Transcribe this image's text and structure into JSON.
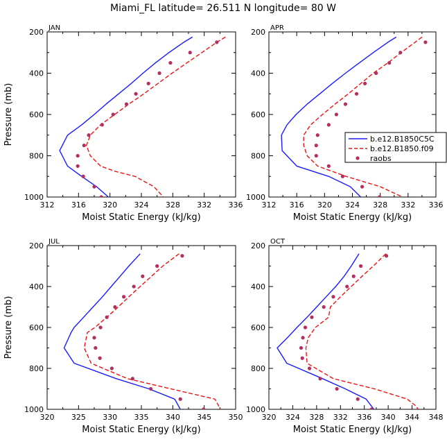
{
  "title": "Miami_FL  latitude= 26.511 N longitude= 80 W",
  "colors": {
    "model1": "#1a1aff",
    "model2": "#ee1111",
    "obs": "#b03060",
    "axis": "#000000"
  },
  "legend": {
    "entries": [
      {
        "label": "b.e12.B1850C5C",
        "style": "solid-blue"
      },
      {
        "label": "b.e12.B1850.f09",
        "style": "dashed-red"
      },
      {
        "label": "raobs",
        "style": "dot"
      }
    ]
  },
  "chart_data": [
    {
      "type": "line",
      "label": "JAN",
      "xlabel": "Moist Static Energy (kJ/kg)",
      "ylabel": "Pressure (mb)",
      "xlim": [
        312,
        336
      ],
      "xticks": [
        312,
        316,
        320,
        324,
        328,
        332,
        336
      ],
      "ylim": [
        200,
        1000
      ],
      "yticks": [
        200,
        400,
        600,
        800,
        1000
      ],
      "y_inverted": true,
      "series": [
        {
          "name": "b.e12.B1850C5C",
          "style": "solid",
          "p": [
            225,
            250,
            300,
            350,
            400,
            450,
            500,
            550,
            600,
            650,
            700,
            775,
            850,
            900,
            950,
            1000,
            1015
          ],
          "mse": [
            330.5,
            329.4,
            327.5,
            325.8,
            324.2,
            322.7,
            321.1,
            319.5,
            318.0,
            316.4,
            314.6,
            313.6,
            314.6,
            316.4,
            318.3,
            319.8,
            320.3
          ]
        },
        {
          "name": "b.e12.B1850.f09",
          "style": "dashed",
          "p": [
            225,
            250,
            300,
            350,
            400,
            450,
            500,
            550,
            600,
            650,
            700,
            750,
            800,
            850,
            875,
            900,
            950,
            1000
          ],
          "mse": [
            334.7,
            333.6,
            331.7,
            329.8,
            327.9,
            326.1,
            324.3,
            322.4,
            320.6,
            318.8,
            317.5,
            317.0,
            317.5,
            318.8,
            320.6,
            323.2,
            325.6,
            326.8
          ]
        },
        {
          "name": "raobs",
          "style": "dot",
          "p": [
            250,
            300,
            350,
            400,
            450,
            500,
            550,
            600,
            650,
            700,
            750,
            800,
            850,
            900,
            950,
            1000
          ],
          "mse": [
            333.6,
            330.2,
            327.7,
            326.3,
            324.9,
            323.3,
            322.1,
            320.4,
            319.0,
            317.3,
            316.7,
            315.9,
            315.9,
            316.6,
            318.0,
            318.9
          ]
        }
      ]
    },
    {
      "type": "line",
      "label": "APR",
      "xlabel": "Moist Static Energy (kJ/kg)",
      "ylabel": "",
      "xlim": [
        312,
        336
      ],
      "xticks": [
        312,
        316,
        320,
        324,
        328,
        332,
        336
      ],
      "ylim": [
        200,
        1000
      ],
      "yticks": [
        200,
        400,
        600,
        800,
        1000
      ],
      "y_inverted": true,
      "series": [
        {
          "name": "b.e12.B1850C5C",
          "style": "solid",
          "p": [
            225,
            250,
            300,
            350,
            400,
            450,
            500,
            550,
            600,
            650,
            700,
            775,
            850,
            900,
            950,
            1000,
            1015
          ],
          "mse": [
            330.3,
            329.1,
            327.0,
            325.0,
            323.0,
            321.1,
            319.3,
            317.5,
            315.9,
            314.6,
            313.8,
            313.9,
            316.0,
            320.6,
            323.7,
            325.2,
            325.7
          ]
        },
        {
          "name": "b.e12.B1850.f09",
          "style": "dashed",
          "p": [
            225,
            250,
            300,
            350,
            400,
            450,
            500,
            550,
            600,
            650,
            700,
            750,
            800,
            850,
            900,
            950,
            1000,
            1015
          ],
          "mse": [
            334.0,
            333.0,
            331.0,
            329.1,
            327.0,
            325.2,
            323.4,
            321.5,
            319.7,
            318.0,
            317.0,
            317.0,
            317.5,
            319.0,
            323.1,
            328.0,
            331.2,
            331.5
          ]
        },
        {
          "name": "raobs",
          "style": "dot",
          "p": [
            250,
            300,
            350,
            400,
            450,
            500,
            550,
            600,
            650,
            700,
            750,
            800,
            850,
            900,
            950,
            1000
          ],
          "mse": [
            334.5,
            330.9,
            329.3,
            327.4,
            325.8,
            324.6,
            323.0,
            321.7,
            320.6,
            319.0,
            318.8,
            318.8,
            320.6,
            322.6,
            325.4,
            327.9
          ]
        }
      ]
    },
    {
      "type": "line",
      "label": "JUL",
      "xlabel": "Moist Static Energy (kJ/kg)",
      "ylabel": "Pressure (mb)",
      "xlim": [
        320,
        350
      ],
      "xticks": [
        320,
        325,
        330,
        335,
        340,
        345,
        350
      ],
      "ylim": [
        200,
        1000
      ],
      "yticks": [
        200,
        400,
        600,
        800,
        1000
      ],
      "y_inverted": true,
      "series": [
        {
          "name": "b.e12.B1850C5C",
          "style": "solid",
          "p": [
            240,
            300,
            350,
            400,
            450,
            500,
            550,
            600,
            625,
            700,
            775,
            850,
            900,
            950,
            1000,
            1020
          ],
          "mse": [
            334.8,
            333.0,
            331.6,
            330.2,
            328.8,
            327.3,
            325.8,
            324.3,
            323.8,
            322.7,
            324.3,
            331.0,
            336.2,
            340.3,
            341.2,
            341.5
          ]
        },
        {
          "name": "b.e12.B1850.f09",
          "style": "dashed",
          "p": [
            240,
            300,
            350,
            400,
            450,
            500,
            550,
            600,
            625,
            700,
            775,
            850,
            900,
            950,
            1000,
            1020
          ],
          "mse": [
            341.0,
            338.4,
            336.6,
            334.8,
            333.0,
            331.3,
            329.5,
            327.6,
            326.4,
            325.9,
            327.0,
            332.8,
            339.7,
            346.7,
            347.6,
            348.0
          ]
        },
        {
          "name": "raobs",
          "style": "dot",
          "p": [
            250,
            300,
            350,
            400,
            450,
            500,
            550,
            600,
            650,
            700,
            750,
            800,
            850,
            900,
            950,
            1000
          ],
          "mse": [
            341.5,
            337.5,
            335.2,
            333.8,
            332.2,
            330.8,
            329.5,
            328.5,
            327.5,
            327.7,
            328.4,
            330.3,
            333.6,
            336.5,
            341.2,
            344.9
          ]
        }
      ]
    },
    {
      "type": "line",
      "label": "OCT",
      "xlabel": "Moist Static Energy (kJ/kg)",
      "ylabel": "",
      "xlim": [
        320,
        348
      ],
      "xticks": [
        320,
        324,
        328,
        332,
        336,
        340,
        344,
        348
      ],
      "ylim": [
        200,
        1000
      ],
      "yticks": [
        200,
        400,
        600,
        800,
        1000
      ],
      "y_inverted": true,
      "series": [
        {
          "name": "b.e12.B1850C5C",
          "style": "solid",
          "p": [
            240,
            300,
            350,
            400,
            450,
            500,
            550,
            600,
            650,
            700,
            775,
            850,
            900,
            950,
            1000,
            1015
          ],
          "mse": [
            335.1,
            333.8,
            332.6,
            331.2,
            329.6,
            328.0,
            326.4,
            324.7,
            323.1,
            321.4,
            323.0,
            329.0,
            332.8,
            336.3,
            337.6,
            337.8
          ]
        },
        {
          "name": "b.e12.B1850.f09",
          "style": "dashed",
          "p": [
            240,
            300,
            350,
            400,
            450,
            500,
            550,
            600,
            650,
            700,
            775,
            850,
            900,
            950,
            985,
            1000
          ],
          "mse": [
            339.6,
            337.5,
            335.6,
            333.8,
            332.0,
            330.3,
            330.0,
            327.8,
            326.6,
            326.2,
            326.4,
            330.8,
            337.7,
            343.2,
            344.7,
            345.0
          ]
        },
        {
          "name": "raobs",
          "style": "dot",
          "p": [
            250,
            300,
            350,
            400,
            450,
            500,
            550,
            600,
            650,
            700,
            750,
            800,
            850,
            900,
            950,
            1000
          ],
          "mse": [
            339.7,
            335.4,
            334.2,
            333.1,
            330.8,
            329.2,
            327.2,
            326.1,
            325.7,
            325.4,
            325.6,
            326.8,
            328.6,
            331.4,
            334.9,
            337.2
          ]
        }
      ]
    }
  ]
}
